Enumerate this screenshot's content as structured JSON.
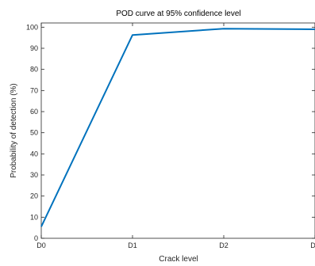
{
  "chart_data": {
    "type": "line",
    "title": "POD curve at 95% confidence level",
    "xlabel": "Crack level",
    "ylabel": "Probability of detection (%)",
    "categories": [
      "D0",
      "D1",
      "D2",
      "D3"
    ],
    "series": [
      {
        "values": [
          5.5,
          96.3,
          99.3,
          99.0
        ]
      }
    ],
    "ylim": [
      0,
      102
    ],
    "yticks": [
      0,
      10,
      20,
      30,
      40,
      50,
      60,
      70,
      80,
      90,
      100
    ],
    "grid": false,
    "box": true,
    "colors": {
      "line": "#0072BD",
      "axis": "#262626"
    }
  }
}
